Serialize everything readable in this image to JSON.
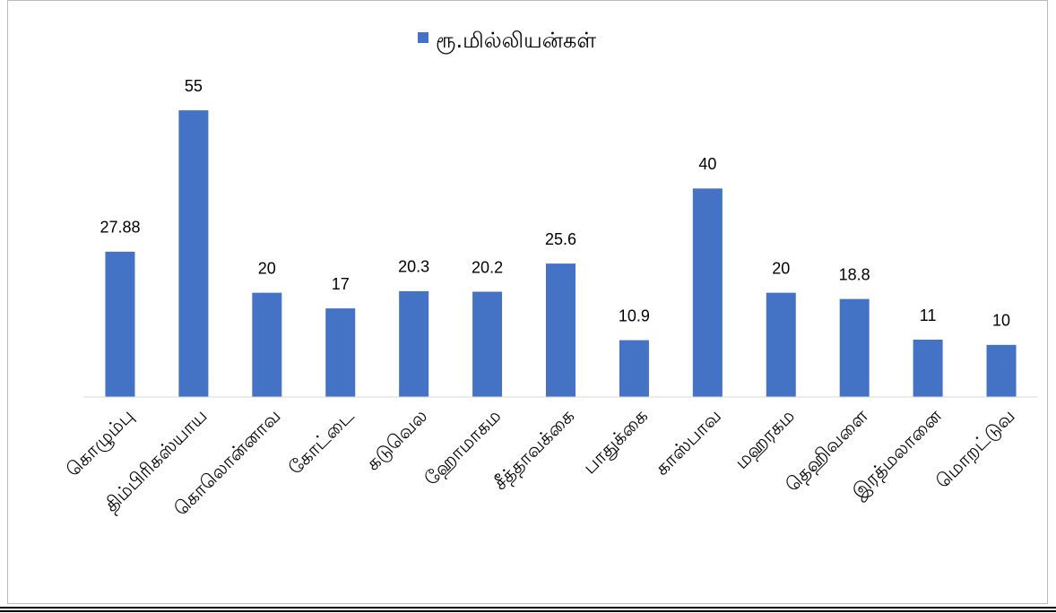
{
  "chart_data": {
    "type": "bar",
    "legend": "ரூ.மில்லியன்கள்",
    "categories": [
      "கொழும்பு",
      "திம்பிரிகஸ்யாய",
      "கொலொன்னாவ",
      "கோட்டை",
      "கடுவெல",
      "ஹோமாகம",
      "சீத்தாவக்கை",
      "பாதுக்கை",
      "காஸ்பாவ",
      "மஹரகம",
      "தெஹிவளை",
      "இரத்மலானை",
      "மொறட்டுவ"
    ],
    "values": [
      27.88,
      55,
      20,
      17,
      20.3,
      20.2,
      25.6,
      10.9,
      40,
      20,
      18.8,
      11,
      10
    ],
    "color": "#4472c4",
    "ylim": [
      0,
      60
    ]
  }
}
